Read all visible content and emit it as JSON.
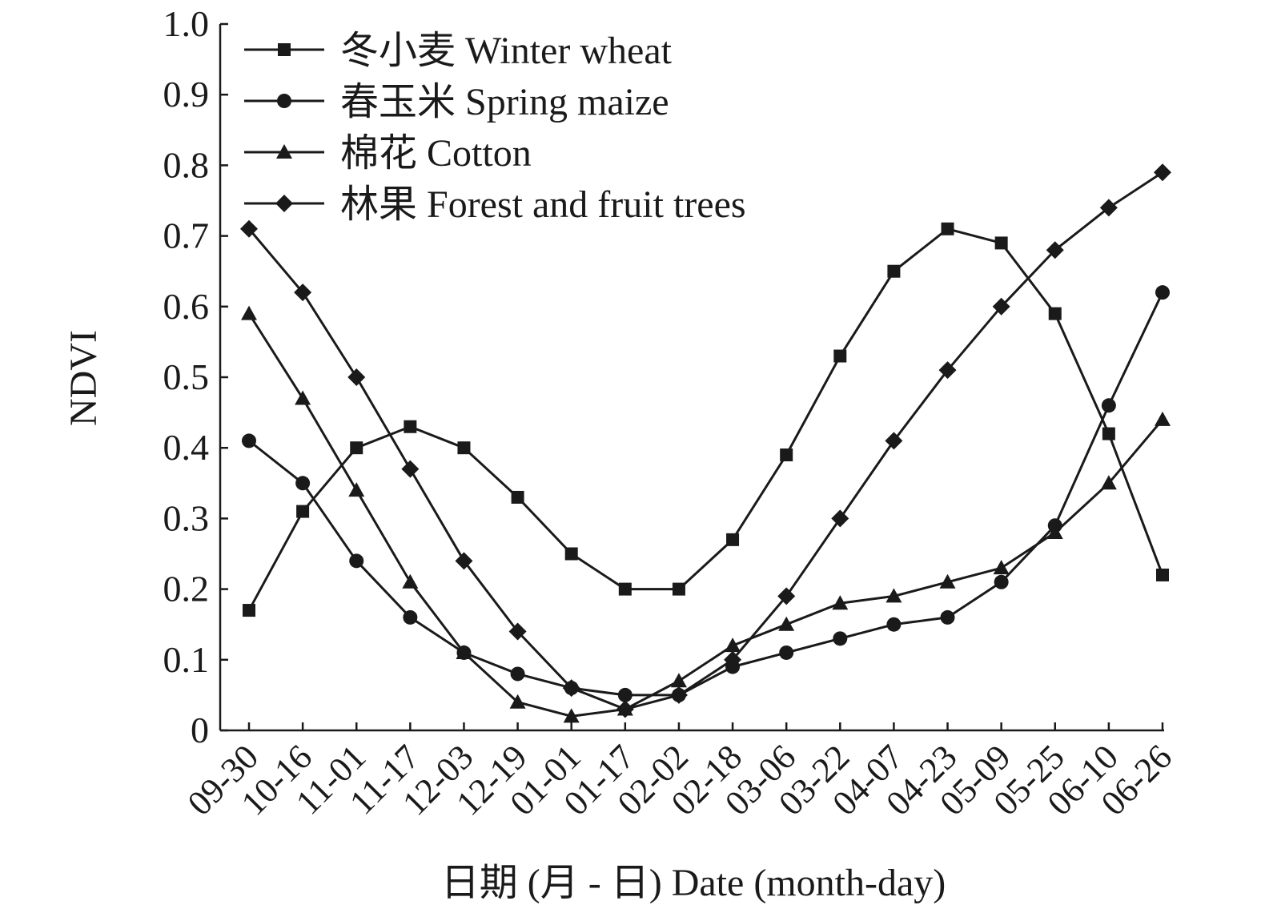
{
  "chart_data": {
    "type": "line",
    "xlabel": "日期 (月 - 日) Date (month-day)",
    "ylabel": "NDVI",
    "ylim": [
      0,
      1.0
    ],
    "y_ticks": [
      "0",
      "0.1",
      "0.2",
      "0.3",
      "0.4",
      "0.5",
      "0.6",
      "0.7",
      "0.8",
      "0.9",
      "1.0"
    ],
    "categories": [
      "09-30",
      "10-16",
      "11-01",
      "11-17",
      "12-03",
      "12-19",
      "01-01",
      "01-17",
      "02-02",
      "02-18",
      "03-06",
      "03-22",
      "04-07",
      "04-23",
      "05-09",
      "05-25",
      "06-10",
      "06-26"
    ],
    "grid": false,
    "legend_position": "top-left",
    "series": [
      {
        "name": "冬小麦 Winter wheat",
        "marker": "square",
        "values": [
          0.17,
          0.31,
          0.4,
          0.43,
          0.4,
          0.33,
          0.25,
          0.2,
          0.2,
          0.27,
          0.39,
          0.53,
          0.65,
          0.71,
          0.69,
          0.59,
          0.42,
          0.22
        ]
      },
      {
        "name": "春玉米 Spring maize",
        "marker": "circle",
        "values": [
          0.41,
          0.35,
          0.24,
          0.16,
          0.11,
          0.08,
          0.06,
          0.05,
          0.05,
          0.09,
          0.11,
          0.13,
          0.15,
          0.16,
          0.21,
          0.29,
          0.46,
          0.62
        ]
      },
      {
        "name": "棉花 Cotton",
        "marker": "triangle",
        "values": [
          0.59,
          0.47,
          0.34,
          0.21,
          0.11,
          0.04,
          0.02,
          0.03,
          0.07,
          0.12,
          0.15,
          0.18,
          0.19,
          0.21,
          0.23,
          0.28,
          0.35,
          0.44
        ]
      },
      {
        "name": "林果 Forest and fruit trees",
        "marker": "diamond",
        "values": [
          0.71,
          0.62,
          0.5,
          0.37,
          0.24,
          0.14,
          0.06,
          0.03,
          0.05,
          0.1,
          0.19,
          0.3,
          0.41,
          0.51,
          0.6,
          0.68,
          0.74,
          0.79
        ]
      }
    ]
  },
  "style": {
    "line_color": "#1a1a1a",
    "background": "#ffffff"
  }
}
